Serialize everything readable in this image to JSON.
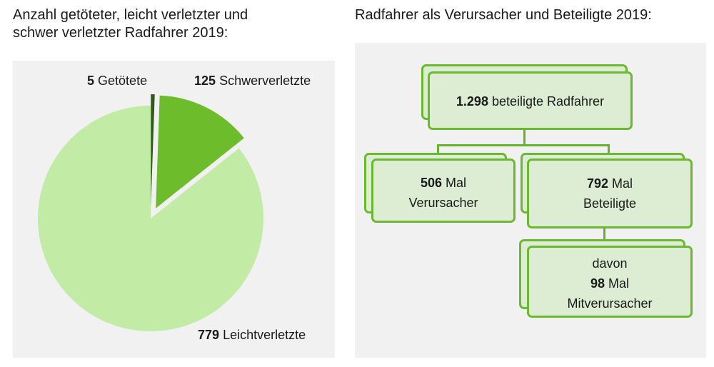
{
  "left": {
    "title_line1": "Anzahl getöteter, leicht verletzter und",
    "title_line2": "schwer verletzter Radfahrer 2019:"
  },
  "right": {
    "title": "Radfahrer als Verursacher und Beteiligte 2019:"
  },
  "chart_data": [
    {
      "type": "pie",
      "title": "Anzahl getöteter, leicht verletzter und schwer verletzter Radfahrer 2019:",
      "slices": [
        {
          "value": "5",
          "label": "Getötete",
          "color": "#2f5a1c",
          "exploded": true
        },
        {
          "value": "125",
          "label": "Schwerverletzte",
          "color": "#6cbc2c",
          "exploded": true
        },
        {
          "value": "779",
          "label": "Leichtverletzte",
          "color": "#c2eba6",
          "exploded": false
        }
      ]
    }
  ],
  "hierarchy": {
    "root": {
      "value": "1.298",
      "text": "beteiligte Radfahrer"
    },
    "left_child": {
      "value": "506",
      "line1_suffix": "Mal",
      "line2": "Verursacher"
    },
    "right_child": {
      "value": "792",
      "line1_suffix": "Mal",
      "line2": "Beteiligte"
    },
    "grandchild": {
      "line1": "davon",
      "value": "98",
      "line2_suffix": "Mal",
      "line3": "Mitverursacher"
    }
  }
}
